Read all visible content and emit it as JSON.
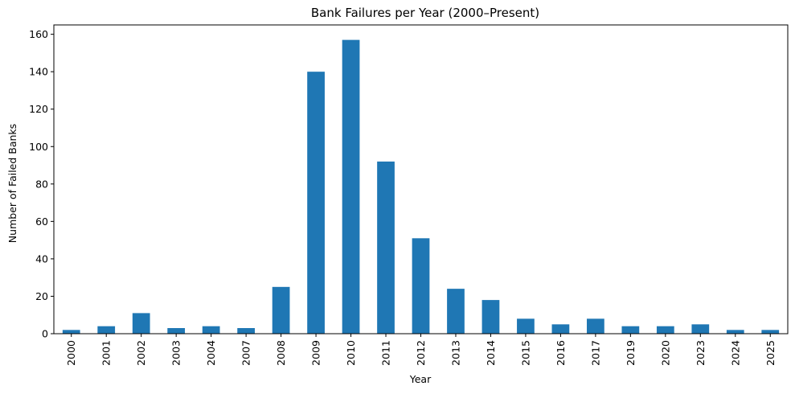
{
  "chart_data": {
    "type": "bar",
    "title": "Bank Failures per Year (2000–Present)",
    "xlabel": "Year",
    "ylabel": "Number of Failed Banks",
    "categories": [
      "2000",
      "2001",
      "2002",
      "2003",
      "2004",
      "2007",
      "2008",
      "2009",
      "2010",
      "2011",
      "2012",
      "2013",
      "2014",
      "2015",
      "2016",
      "2017",
      "2019",
      "2020",
      "2023",
      "2024",
      "2025"
    ],
    "values": [
      2,
      4,
      11,
      3,
      4,
      3,
      25,
      140,
      157,
      92,
      51,
      24,
      18,
      8,
      5,
      8,
      4,
      4,
      5,
      2,
      2
    ],
    "ylim": [
      0,
      165
    ],
    "yticks": [
      0,
      20,
      40,
      60,
      80,
      100,
      120,
      140,
      160
    ],
    "grid": false,
    "legend": "none",
    "bar_color": "#1f77b4"
  }
}
